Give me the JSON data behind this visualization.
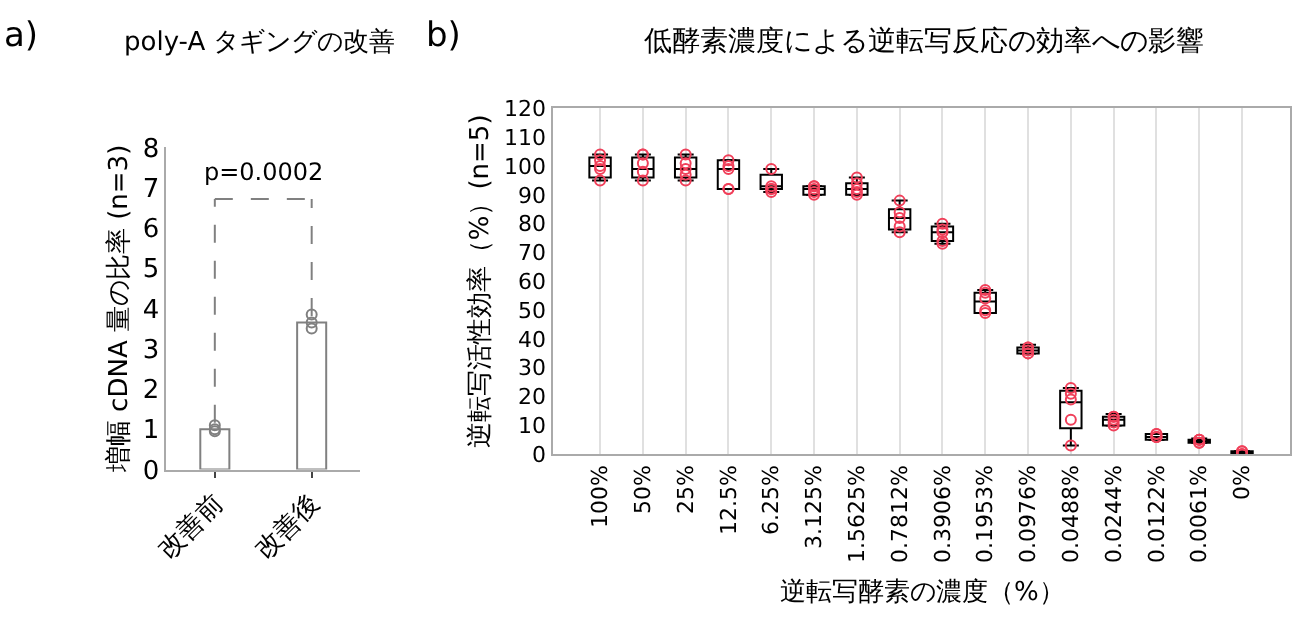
{
  "chart_data": [
    {
      "type": "bar",
      "title": "poly-A タギングの改善",
      "ylabel": "増幅 cDNA 量の比率 (n=3)",
      "categories": [
        "改善前",
        "改善後"
      ],
      "series": [
        {
          "type": "bar",
          "color": "#ffffff",
          "values": [
            1.0,
            3.65
          ]
        },
        {
          "type": "scatter",
          "color": "#808080",
          "x": [
            "改善前",
            "改善前",
            "改善前",
            "改善後",
            "改善後",
            "改善後"
          ],
          "values": [
            1.1,
            1.0,
            0.95,
            3.85,
            3.5,
            3.65
          ]
        }
      ],
      "marker": "circle",
      "ylim": [
        0,
        8
      ],
      "yticks": [
        0,
        1,
        2,
        3,
        4,
        5,
        6,
        7,
        8
      ],
      "annotations": [
        "a)",
        "p=0.0002"
      ]
    },
    {
      "type": "box",
      "title": "低酵素濃度による逆転写反応の効率への影響",
      "xlabel": "逆転写酵素の濃度（%）",
      "ylabel": "逆転写活性効率（%）(n=5)",
      "categories": [
        "100%",
        "50%",
        "25%",
        "12.5%",
        "6.25%",
        "3.125%",
        "1.5625%",
        "0.7812%",
        "0.3906%",
        "0.1953%",
        "0.0976%",
        "0.0488%",
        "0.0244%",
        "0.0122%",
        "0.0061%",
        "0%"
      ],
      "boxes": [
        {
          "low": 95,
          "q1": 96,
          "median": 100,
          "q3": 103,
          "high": 104
        },
        {
          "low": 95,
          "q1": 96,
          "median": 99,
          "q3": 103,
          "high": 104
        },
        {
          "low": 95,
          "q1": 96,
          "median": 99,
          "q3": 103,
          "high": 104
        },
        {
          "low": 92,
          "q1": 92,
          "median": 99,
          "q3": 102,
          "high": 102
        },
        {
          "low": 91,
          "q1": 92,
          "median": 93,
          "q3": 97,
          "high": 99
        },
        {
          "low": 90,
          "q1": 90,
          "median": 92,
          "q3": 93,
          "high": 93
        },
        {
          "low": 90,
          "q1": 90,
          "median": 92,
          "q3": 94,
          "high": 96
        },
        {
          "low": 77,
          "q1": 78,
          "median": 82,
          "q3": 85,
          "high": 88
        },
        {
          "low": 73,
          "q1": 74,
          "median": 77,
          "q3": 79,
          "high": 80
        },
        {
          "low": 49,
          "q1": 49,
          "median": 53,
          "q3": 56,
          "high": 57
        },
        {
          "low": 35,
          "q1": 35,
          "median": 36,
          "q3": 37,
          "high": 38
        },
        {
          "low": 3,
          "q1": 9,
          "median": 18,
          "q3": 22,
          "high": 23
        },
        {
          "low": 10,
          "q1": 10,
          "median": 12,
          "q3": 13,
          "high": 14
        },
        {
          "low": 5,
          "q1": 5,
          "median": 6,
          "q3": 7,
          "high": 7
        },
        {
          "low": 4,
          "q1": 4,
          "median": 4.5,
          "q3": 5,
          "high": 5.5
        },
        {
          "low": 0,
          "q1": 0,
          "median": 0.5,
          "q3": 1,
          "high": 1
        }
      ],
      "color": "#000000",
      "series": [
        {
          "type": "scatter",
          "color": "#f0405a",
          "x": [
            "100%",
            "100%",
            "100%",
            "100%",
            "100%",
            "50%",
            "50%",
            "50%",
            "50%",
            "50%",
            "25%",
            "25%",
            "25%",
            "25%",
            "25%",
            "12.5%",
            "12.5%",
            "12.5%",
            "12.5%",
            "12.5%",
            "6.25%",
            "6.25%",
            "6.25%",
            "6.25%",
            "6.25%",
            "3.125%",
            "3.125%",
            "3.125%",
            "3.125%",
            "3.125%",
            "1.5625%",
            "1.5625%",
            "1.5625%",
            "1.5625%",
            "1.5625%",
            "0.7812%",
            "0.7812%",
            "0.7812%",
            "0.7812%",
            "0.7812%",
            "0.3906%",
            "0.3906%",
            "0.3906%",
            "0.3906%",
            "0.3906%",
            "0.1953%",
            "0.1953%",
            "0.1953%",
            "0.1953%",
            "0.1953%",
            "0.0976%",
            "0.0976%",
            "0.0976%",
            "0.0976%",
            "0.0976%",
            "0.0488%",
            "0.0488%",
            "0.0488%",
            "0.0488%",
            "0.0488%",
            "0.0244%",
            "0.0244%",
            "0.0244%",
            "0.0244%",
            "0.0244%",
            "0.0122%",
            "0.0122%",
            "0.0122%",
            "0.0122%",
            "0.0122%",
            "0.0061%",
            "0.0061%",
            "0.0061%",
            "0.0061%",
            "0.0061%",
            "0%",
            "0%",
            "0%",
            "0%",
            "0%"
          ],
          "values": [
            95,
            99,
            100,
            102,
            104,
            95,
            98,
            101,
            104,
            104,
            95,
            97,
            99,
            101,
            104,
            92,
            92,
            99,
            100,
            102,
            91,
            92,
            92,
            93,
            99,
            90,
            91,
            92,
            93,
            93,
            90,
            91,
            92,
            94,
            96,
            77,
            79,
            82,
            84,
            88,
            73,
            74,
            77,
            78,
            80,
            49,
            50,
            54,
            56,
            57,
            35,
            35,
            36,
            37,
            37,
            3,
            12,
            19,
            21,
            23,
            10,
            11,
            12,
            13,
            13,
            6,
            6,
            6,
            7,
            7,
            4,
            4,
            5,
            5,
            5,
            0,
            0,
            0,
            1,
            1
          ]
        }
      ],
      "marker": "circle",
      "ylim": [
        0,
        120
      ],
      "yticks": [
        0,
        10,
        20,
        30,
        40,
        50,
        60,
        70,
        80,
        90,
        100,
        110,
        120
      ],
      "grid": "x",
      "annotations": [
        "b)"
      ]
    }
  ]
}
